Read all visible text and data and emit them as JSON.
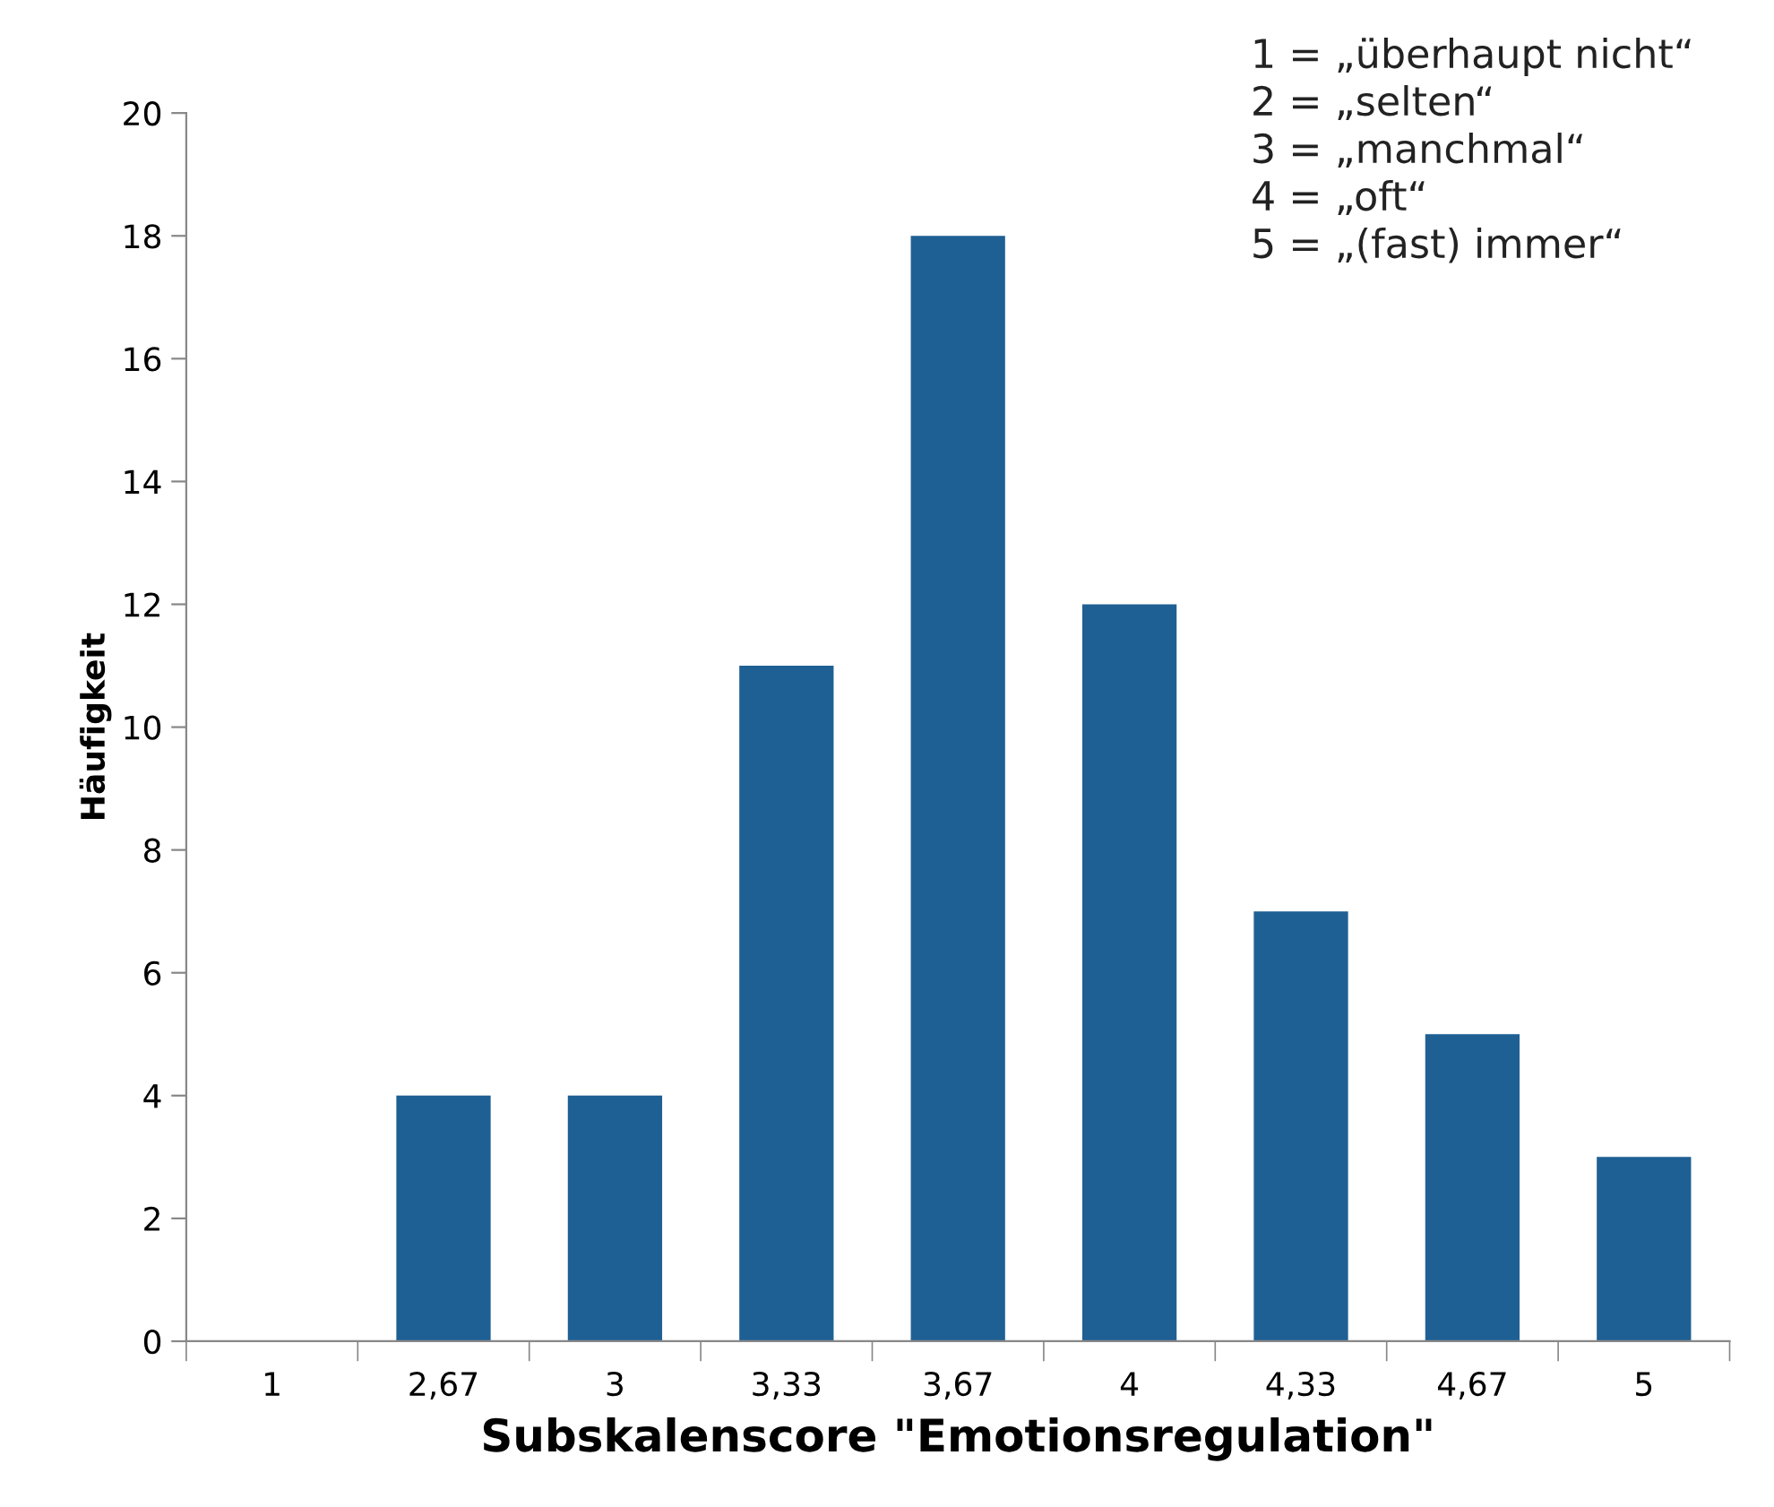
{
  "chart_data": {
    "type": "bar",
    "xlabel": "Subskalenscore \"Emotionsregulation\"",
    "ylabel": "Häufigkeit",
    "categories": [
      "1",
      "2,67",
      "3",
      "3,33",
      "3,67",
      "4",
      "4,33",
      "4,67",
      "5"
    ],
    "values": [
      0,
      4,
      4,
      11,
      18,
      12,
      7,
      5,
      3
    ],
    "color": "#1f6094",
    "ylim": [
      0,
      20
    ],
    "yticks": [
      0,
      2,
      4,
      6,
      8,
      10,
      12,
      14,
      16,
      18,
      20
    ],
    "grid": false,
    "legend": false,
    "annotations": [
      "1 = „überhaupt nicht“",
      "2 = „selten“",
      "3 = „manchmal“",
      "4 = „oft“",
      "5 = „(fast) immer“"
    ]
  }
}
